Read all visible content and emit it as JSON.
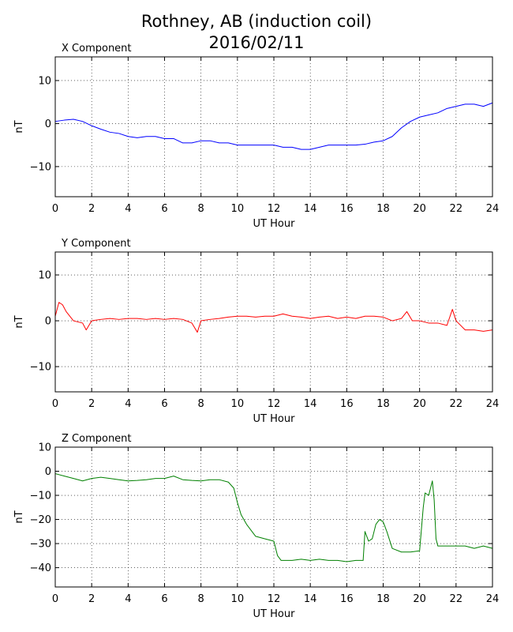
{
  "figure": {
    "title_line1": "Rothney, AB (induction coil)",
    "title_line2": "2016/02/11"
  },
  "chart_data": [
    {
      "type": "line",
      "title": "X Component",
      "xlabel": "UT Hour",
      "ylabel": "nT",
      "xlim": [
        0,
        24
      ],
      "ylim": [
        -17,
        15.5
      ],
      "xticks": [
        0,
        2,
        4,
        6,
        8,
        10,
        12,
        14,
        16,
        18,
        20,
        22,
        24
      ],
      "yticks": [
        -10,
        0,
        10
      ],
      "ytick_labels": [
        "−10",
        "0",
        "10"
      ],
      "grid": true,
      "color": "#0000ff",
      "series": [
        {
          "x": [
            0,
            0.5,
            1,
            1.5,
            2,
            2.5,
            3,
            3.5,
            4,
            4.5,
            5,
            5.5,
            6,
            6.5,
            7,
            7.5,
            8,
            8.5,
            9,
            9.5,
            10,
            10.5,
            11,
            11.5,
            12,
            12.5,
            13,
            13.5,
            14,
            14.5,
            15,
            15.5,
            16,
            16.5,
            17,
            17.5,
            18,
            18.5,
            19,
            19.5,
            20,
            20.5,
            21,
            21.5,
            22,
            22.5,
            23,
            23.5,
            24
          ],
          "values": [
            0.5,
            0.8,
            1.0,
            0.5,
            -0.5,
            -1.3,
            -2.0,
            -2.3,
            -3.0,
            -3.3,
            -3.0,
            -3.0,
            -3.5,
            -3.5,
            -4.5,
            -4.5,
            -4.0,
            -4.0,
            -4.5,
            -4.5,
            -5.0,
            -5.0,
            -5.0,
            -5.0,
            -5.0,
            -5.5,
            -5.5,
            -6.0,
            -6.0,
            -5.5,
            -5.0,
            -5.0,
            -5.0,
            -5.0,
            -4.8,
            -4.3,
            -4.0,
            -3.0,
            -1.0,
            0.5,
            1.5,
            2.0,
            2.5,
            3.5,
            4.0,
            4.5,
            4.5,
            4.0,
            4.8
          ]
        }
      ]
    },
    {
      "type": "line",
      "title": "Y Component",
      "xlabel": "UT Hour",
      "ylabel": "nT",
      "xlim": [
        0,
        24
      ],
      "ylim": [
        -15.5,
        15
      ],
      "xticks": [
        0,
        2,
        4,
        6,
        8,
        10,
        12,
        14,
        16,
        18,
        20,
        22,
        24
      ],
      "yticks": [
        -10,
        0,
        10
      ],
      "ytick_labels": [
        "−10",
        "0",
        "10"
      ],
      "grid": true,
      "color": "#ff0000",
      "series": [
        {
          "x": [
            0,
            0.2,
            0.4,
            0.6,
            1,
            1.5,
            1.7,
            2,
            2.5,
            3,
            3.5,
            4,
            4.5,
            5,
            5.5,
            6,
            6.5,
            7,
            7.5,
            7.8,
            8,
            8.5,
            9,
            9.5,
            10,
            10.5,
            11,
            11.5,
            12,
            12.5,
            13,
            13.5,
            14,
            14.5,
            15,
            15.5,
            16,
            16.5,
            17,
            17.5,
            18,
            18.5,
            19,
            19.3,
            19.6,
            20,
            20.5,
            21,
            21.5,
            21.8,
            22,
            22.5,
            23,
            23.5,
            24
          ],
          "values": [
            1.0,
            4.0,
            3.5,
            2.0,
            0.0,
            -0.5,
            -2.0,
            0.0,
            0.3,
            0.5,
            0.3,
            0.5,
            0.5,
            0.3,
            0.5,
            0.3,
            0.5,
            0.3,
            -0.5,
            -2.5,
            0.0,
            0.3,
            0.5,
            0.8,
            1.0,
            1.0,
            0.8,
            1.0,
            1.0,
            1.5,
            1.0,
            0.8,
            0.5,
            0.8,
            1.0,
            0.5,
            0.8,
            0.5,
            1.0,
            1.0,
            0.8,
            0.0,
            0.5,
            2.0,
            0.0,
            0.0,
            -0.5,
            -0.5,
            -1.0,
            2.5,
            0.0,
            -2.0,
            -2.0,
            -2.3,
            -2.0
          ]
        }
      ]
    },
    {
      "type": "line",
      "title": "Z Component",
      "xlabel": "UT Hour",
      "ylabel": "nT",
      "xlim": [
        0,
        24
      ],
      "ylim": [
        -48,
        10
      ],
      "xticks": [
        0,
        2,
        4,
        6,
        8,
        10,
        12,
        14,
        16,
        18,
        20,
        22,
        24
      ],
      "yticks": [
        -40,
        -30,
        -20,
        -10,
        0,
        10
      ],
      "ytick_labels": [
        "−40",
        "−30",
        "−20",
        "−10",
        "0",
        "10"
      ],
      "grid": true,
      "color": "#008000",
      "series": [
        {
          "x": [
            0,
            0.5,
            1,
            1.5,
            2,
            2.5,
            3,
            3.5,
            4,
            4.5,
            5,
            5.5,
            6,
            6.5,
            7,
            7.5,
            8,
            8.5,
            9,
            9.5,
            9.8,
            10,
            10.2,
            10.5,
            11,
            11.5,
            12,
            12.2,
            12.4,
            13,
            13.5,
            14,
            14.5,
            15,
            15.5,
            16,
            16.5,
            16.9,
            17.0,
            17.2,
            17.4,
            17.6,
            17.8,
            18.0,
            18.2,
            18.5,
            19,
            19.5,
            20,
            20.2,
            20.3,
            20.5,
            20.7,
            20.8,
            20.9,
            21.0,
            21.5,
            22,
            22.5,
            23,
            23.5,
            24
          ],
          "values": [
            -1,
            -2,
            -3,
            -4,
            -3,
            -2.5,
            -3,
            -3.5,
            -4,
            -3.8,
            -3.5,
            -3.0,
            -3.0,
            -2.0,
            -3.5,
            -3.8,
            -4.0,
            -3.5,
            -3.5,
            -4.5,
            -7,
            -13,
            -18,
            -22,
            -27,
            -28,
            -29,
            -35,
            -37,
            -37,
            -36.5,
            -37,
            -36.5,
            -37,
            -37,
            -37.5,
            -37,
            -37,
            -25,
            -29,
            -28,
            -22,
            -20,
            -21,
            -25,
            -32,
            -33.5,
            -33.5,
            -33,
            -15,
            -9,
            -10,
            -4,
            -12,
            -28,
            -31,
            -31,
            -31,
            -31,
            -32,
            -31,
            -32
          ]
        }
      ]
    }
  ]
}
